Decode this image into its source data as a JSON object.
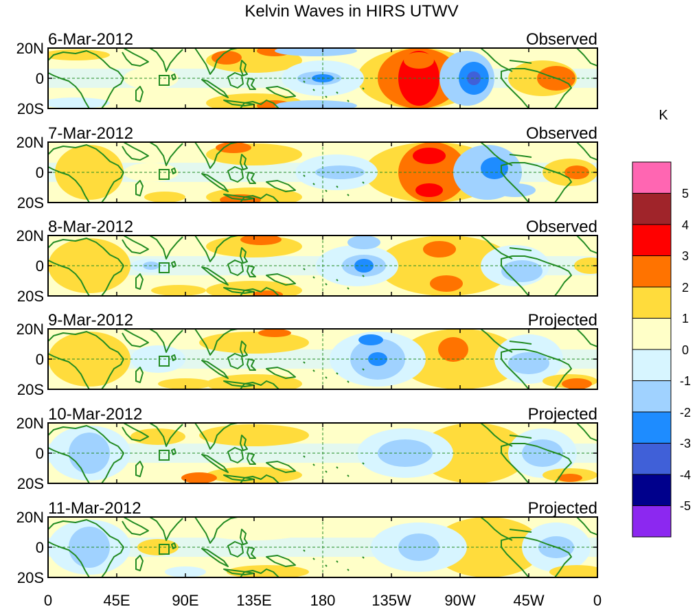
{
  "figure": {
    "title": "Kelvin Waves in HIRS UTWV",
    "latitude_labels": [
      "20N",
      "0",
      "20S"
    ],
    "longitude_labels": [
      "0",
      "45E",
      "90E",
      "135E",
      "180",
      "135W",
      "90W",
      "45W",
      "0"
    ],
    "colorbar": {
      "unit": "K",
      "labels": [
        "5",
        "4",
        "3",
        "2",
        "1",
        "0",
        "-1",
        "-2",
        "-3",
        "-4",
        "-5"
      ],
      "colors_top_to_bottom": [
        "#ff66b2",
        "#a0242a",
        "#ff0000",
        "#ff7300",
        "#ffdc3c",
        "#ffffc8",
        "#d7f5ff",
        "#a0d2ff",
        "#1e8cff",
        "#4060d8",
        "#00008c",
        "#8c28f0"
      ]
    },
    "colors": {
      "coastline": "#228b22",
      "dashed_reference": "#228b22",
      "frame": "#000000"
    }
  },
  "panels": [
    {
      "date": "6-Mar-2012",
      "status": "Observed"
    },
    {
      "date": "7-Mar-2012",
      "status": "Observed"
    },
    {
      "date": "8-Mar-2012",
      "status": "Observed"
    },
    {
      "date": "9-Mar-2012",
      "status": "Projected"
    },
    {
      "date": "10-Mar-2012",
      "status": "Projected"
    },
    {
      "date": "11-Mar-2012",
      "status": "Projected"
    }
  ]
}
